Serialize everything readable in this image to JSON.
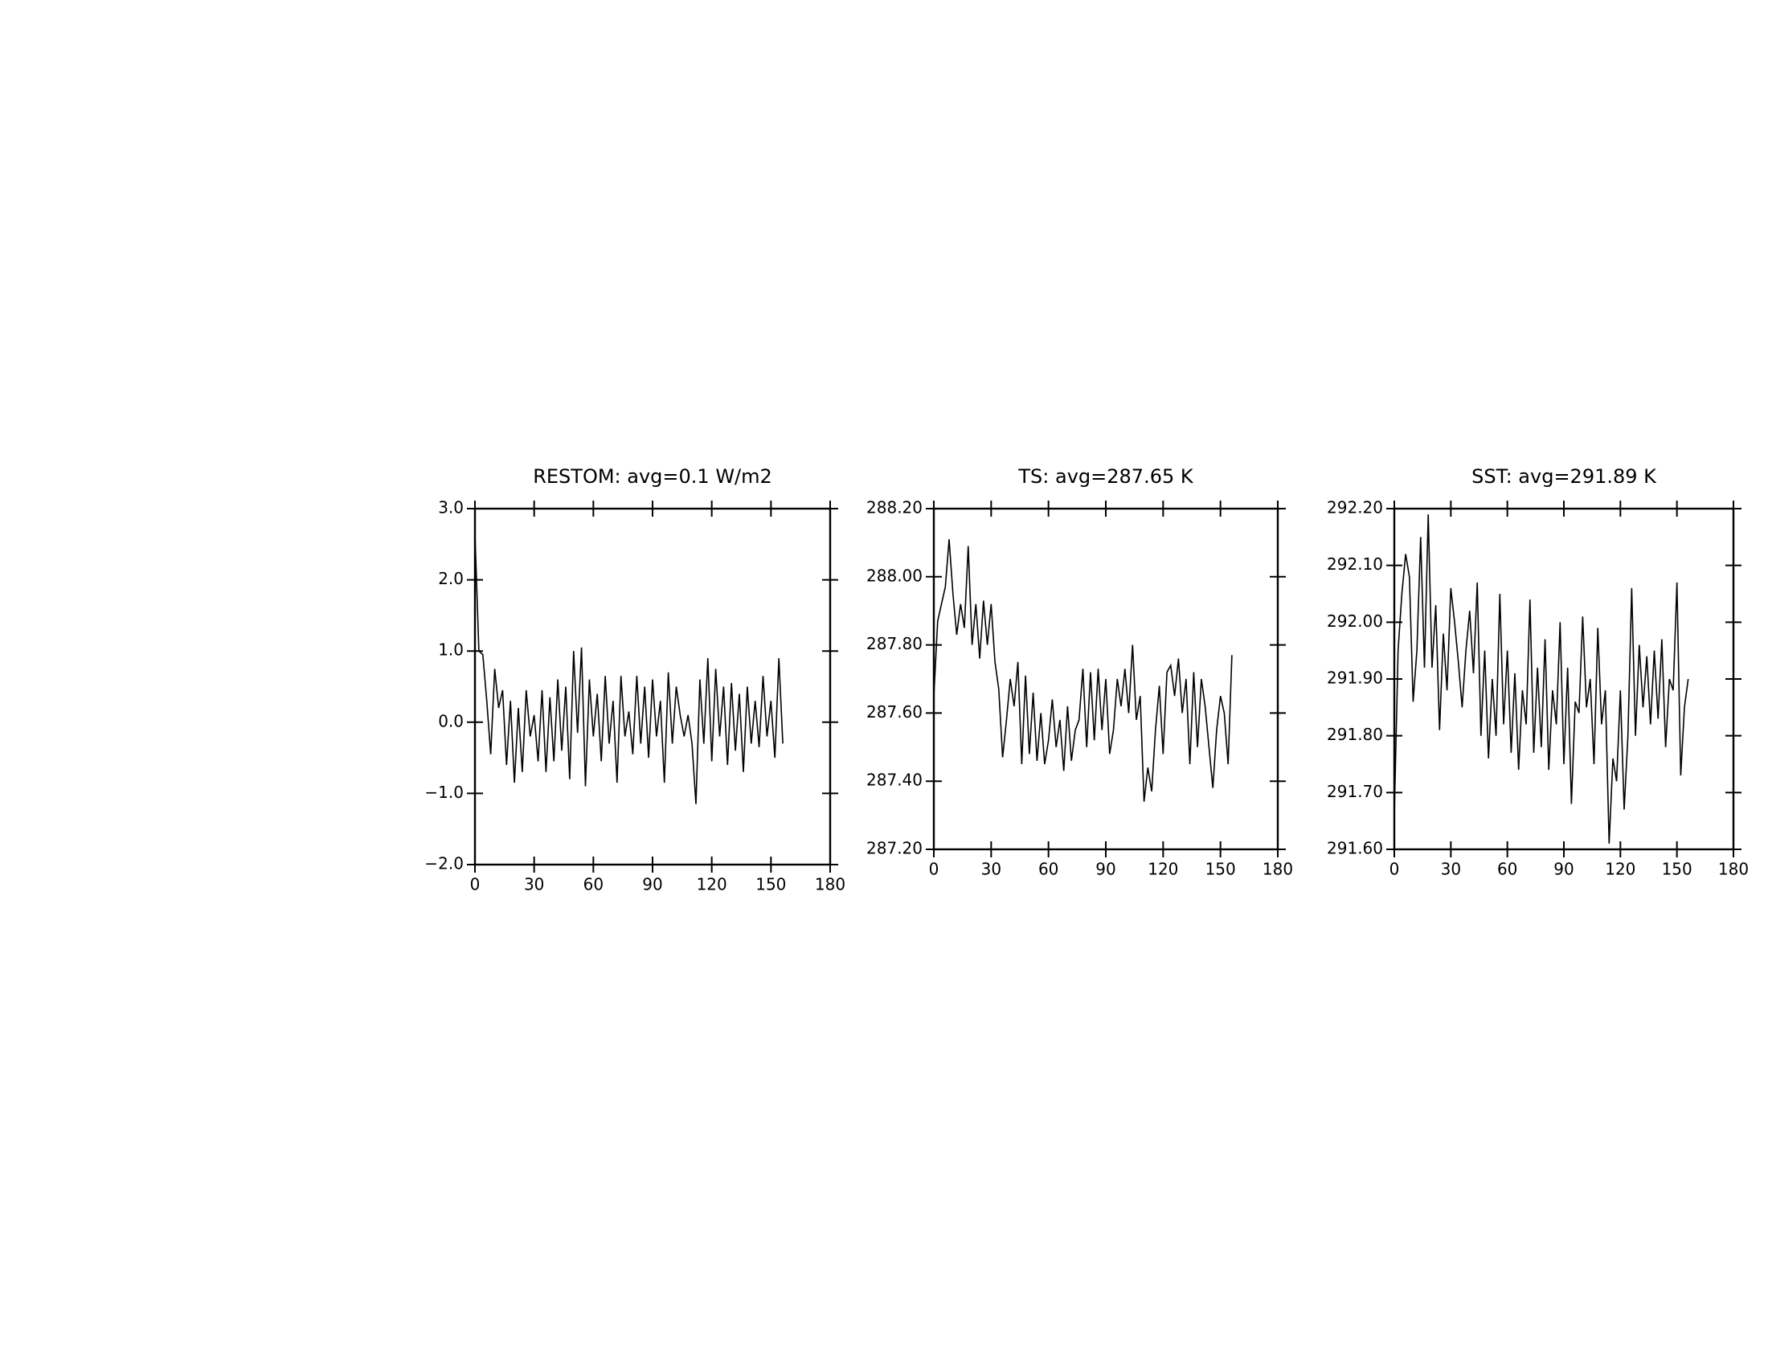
{
  "chart_data": [
    {
      "type": "line",
      "title": "RESTOM: avg=0.1 W/m2",
      "color": "#000000",
      "x": [
        0,
        2,
        4,
        6,
        8,
        10,
        12,
        14,
        16,
        18,
        20,
        22,
        24,
        26,
        28,
        30,
        32,
        34,
        36,
        38,
        40,
        42,
        44,
        46,
        48,
        50,
        52,
        54,
        56,
        58,
        60,
        62,
        64,
        66,
        68,
        70,
        72,
        74,
        76,
        78,
        80,
        82,
        84,
        86,
        88,
        90,
        92,
        94,
        96,
        98,
        100,
        102,
        104,
        106,
        108,
        110,
        112,
        114,
        116,
        118,
        120,
        122,
        124,
        126,
        128,
        130,
        132,
        134,
        136,
        138,
        140,
        142,
        144,
        146,
        148,
        150,
        152,
        154,
        156
      ],
      "values": [
        2.65,
        1.0,
        0.95,
        0.3,
        -0.45,
        0.75,
        0.2,
        0.45,
        -0.6,
        0.3,
        -0.85,
        0.2,
        -0.7,
        0.45,
        -0.2,
        0.1,
        -0.55,
        0.45,
        -0.7,
        0.35,
        -0.55,
        0.6,
        -0.4,
        0.5,
        -0.8,
        1.0,
        -0.15,
        1.05,
        -0.9,
        0.6,
        -0.2,
        0.4,
        -0.55,
        0.65,
        -0.3,
        0.3,
        -0.85,
        0.65,
        -0.2,
        0.15,
        -0.45,
        0.65,
        -0.3,
        0.5,
        -0.5,
        0.6,
        -0.2,
        0.3,
        -0.85,
        0.7,
        -0.3,
        0.5,
        0.1,
        -0.2,
        0.1,
        -0.3,
        -1.15,
        0.6,
        -0.3,
        0.9,
        -0.55,
        0.75,
        -0.2,
        0.5,
        -0.6,
        0.55,
        -0.4,
        0.4,
        -0.7,
        0.5,
        -0.3,
        0.3,
        -0.35,
        0.65,
        -0.2,
        0.3,
        -0.5,
        0.9,
        -0.3
      ],
      "xlim": [
        0,
        180
      ],
      "xticks": [
        0,
        30,
        60,
        90,
        120,
        150,
        180
      ],
      "ylim": [
        -2,
        3
      ],
      "yticks": [
        {
          "value": -2,
          "label": "−2.0"
        },
        {
          "value": -1,
          "label": "−1.0"
        },
        {
          "value": 0,
          "label": "0.0"
        },
        {
          "value": 1,
          "label": "1.0"
        },
        {
          "value": 2,
          "label": "2.0"
        },
        {
          "value": 3,
          "label": "3.0"
        }
      ]
    },
    {
      "type": "line",
      "title": "TS: avg=287.65 K",
      "color": "#000000",
      "x": [
        0,
        2,
        4,
        6,
        8,
        10,
        12,
        14,
        16,
        18,
        20,
        22,
        24,
        26,
        28,
        30,
        32,
        34,
        36,
        38,
        40,
        42,
        44,
        46,
        48,
        50,
        52,
        54,
        56,
        58,
        60,
        62,
        64,
        66,
        68,
        70,
        72,
        74,
        76,
        78,
        80,
        82,
        84,
        86,
        88,
        90,
        92,
        94,
        96,
        98,
        100,
        102,
        104,
        106,
        108,
        110,
        112,
        114,
        116,
        118,
        120,
        122,
        124,
        126,
        128,
        130,
        132,
        134,
        136,
        138,
        140,
        142,
        144,
        146,
        148,
        150,
        152,
        154,
        156
      ],
      "values": [
        287.65,
        287.87,
        287.92,
        287.97,
        288.11,
        287.95,
        287.83,
        287.92,
        287.85,
        288.09,
        287.8,
        287.92,
        287.76,
        287.93,
        287.8,
        287.92,
        287.75,
        287.67,
        287.47,
        287.58,
        287.7,
        287.62,
        287.75,
        287.45,
        287.71,
        287.48,
        287.66,
        287.46,
        287.6,
        287.45,
        287.52,
        287.64,
        287.5,
        287.58,
        287.43,
        287.62,
        287.46,
        287.55,
        287.58,
        287.73,
        287.5,
        287.72,
        287.52,
        287.73,
        287.55,
        287.7,
        287.48,
        287.55,
        287.7,
        287.62,
        287.73,
        287.6,
        287.8,
        287.58,
        287.65,
        287.34,
        287.44,
        287.37,
        287.55,
        287.68,
        287.48,
        287.72,
        287.74,
        287.65,
        287.76,
        287.6,
        287.7,
        287.45,
        287.72,
        287.5,
        287.7,
        287.62,
        287.5,
        287.38,
        287.55,
        287.65,
        287.6,
        287.45,
        287.77
      ],
      "xlim": [
        0,
        180
      ],
      "xticks": [
        0,
        30,
        60,
        90,
        120,
        150,
        180
      ],
      "ylim": [
        287.2,
        288.2
      ],
      "yticks": [
        {
          "value": 287.2,
          "label": "287.20"
        },
        {
          "value": 287.4,
          "label": "287.40"
        },
        {
          "value": 287.6,
          "label": "287.60"
        },
        {
          "value": 287.8,
          "label": "287.80"
        },
        {
          "value": 288.0,
          "label": "288.00"
        },
        {
          "value": 288.2,
          "label": "288.20"
        }
      ]
    },
    {
      "type": "line",
      "title": "SST: avg=291.89 K",
      "color": "#000000",
      "x": [
        0,
        2,
        4,
        6,
        8,
        10,
        12,
        14,
        16,
        18,
        20,
        22,
        24,
        26,
        28,
        30,
        32,
        34,
        36,
        38,
        40,
        42,
        44,
        46,
        48,
        50,
        52,
        54,
        56,
        58,
        60,
        62,
        64,
        66,
        68,
        70,
        72,
        74,
        76,
        78,
        80,
        82,
        84,
        86,
        88,
        90,
        92,
        94,
        96,
        98,
        100,
        102,
        104,
        106,
        108,
        110,
        112,
        114,
        116,
        118,
        120,
        122,
        124,
        126,
        128,
        130,
        132,
        134,
        136,
        138,
        140,
        142,
        144,
        146,
        148,
        150,
        152,
        154,
        156
      ],
      "values": [
        291.66,
        291.95,
        292.05,
        292.12,
        292.08,
        291.86,
        291.95,
        292.15,
        291.92,
        292.19,
        291.92,
        292.03,
        291.81,
        291.98,
        291.88,
        292.06,
        292.0,
        291.93,
        291.85,
        291.95,
        292.02,
        291.91,
        292.07,
        291.8,
        291.95,
        291.76,
        291.9,
        291.8,
        292.05,
        291.82,
        291.95,
        291.77,
        291.91,
        291.74,
        291.88,
        291.82,
        292.04,
        291.77,
        291.92,
        291.78,
        291.97,
        291.74,
        291.88,
        291.82,
        292.0,
        291.75,
        291.92,
        291.68,
        291.86,
        291.84,
        292.01,
        291.85,
        291.9,
        291.75,
        291.99,
        291.82,
        291.88,
        291.61,
        291.76,
        291.72,
        291.88,
        291.67,
        291.8,
        292.06,
        291.8,
        291.96,
        291.85,
        291.94,
        291.82,
        291.95,
        291.83,
        291.97,
        291.78,
        291.9,
        291.88,
        292.07,
        291.73,
        291.85,
        291.9
      ],
      "xlim": [
        0,
        180
      ],
      "xticks": [
        0,
        30,
        60,
        90,
        120,
        150,
        180
      ],
      "ylim": [
        291.6,
        292.2
      ],
      "yticks": [
        {
          "value": 291.6,
          "label": "291.60"
        },
        {
          "value": 291.7,
          "label": "291.70"
        },
        {
          "value": 291.8,
          "label": "291.80"
        },
        {
          "value": 291.9,
          "label": "291.90"
        },
        {
          "value": 292.0,
          "label": "292.00"
        },
        {
          "value": 292.1,
          "label": "292.10"
        },
        {
          "value": 292.2,
          "label": "292.20"
        }
      ]
    }
  ]
}
